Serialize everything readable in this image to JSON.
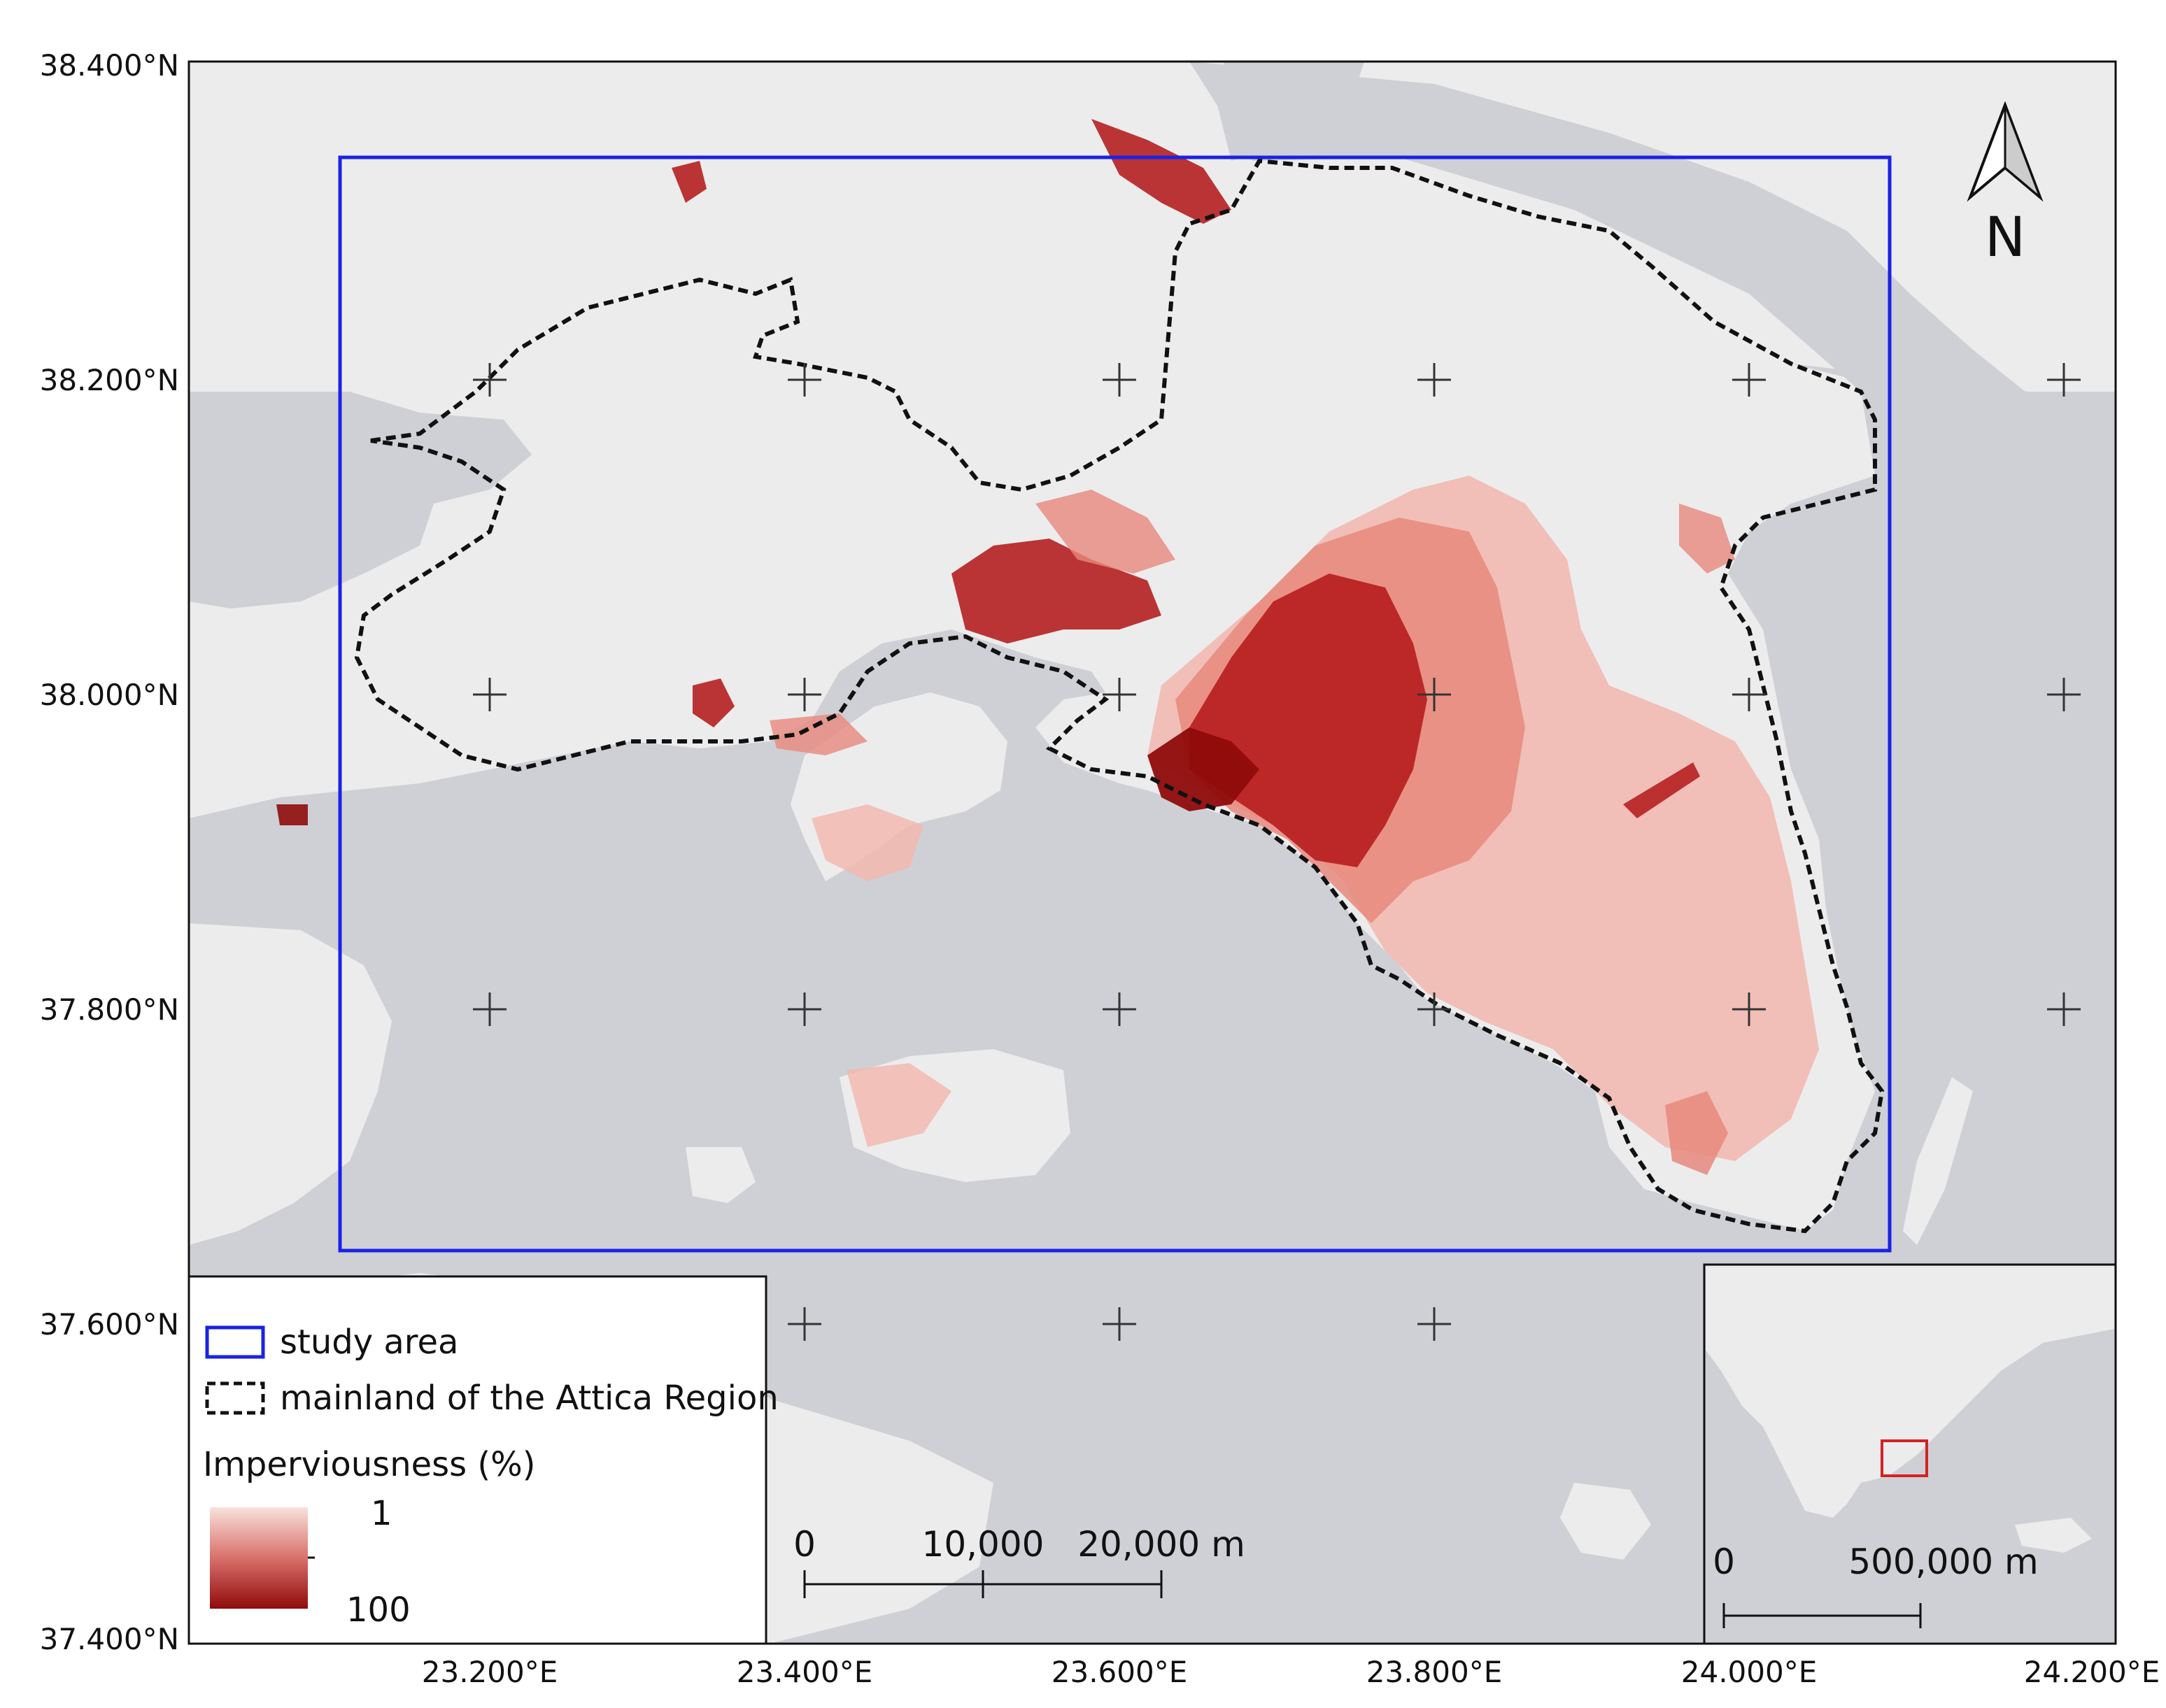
{
  "axes": {
    "lat_labels": [
      "38.400°N",
      "38.200°N",
      "38.000°N",
      "37.800°N",
      "37.600°N",
      "37.400°N"
    ],
    "lon_labels": [
      "23.200°E",
      "23.400°E",
      "23.600°E",
      "23.800°E",
      "24.000°E",
      "24.200°E"
    ]
  },
  "legend": {
    "study_area": "study area",
    "attica_boundary": "mainland of the Attica Region",
    "imperviousness_title": "Imperviousness (%)",
    "ramp_min": "1",
    "ramp_max": "100"
  },
  "scalebar_main": {
    "zero": "0",
    "mid": "10,000",
    "max": "20,000 m"
  },
  "scalebar_inset": {
    "zero": "0",
    "max": "500,000 m"
  },
  "north_arrow": {
    "label": "N"
  },
  "colors": {
    "sea": "#cfd0d5",
    "land": "#ececed",
    "study_area": "#1a22e6",
    "boundary": "#111111",
    "impervious_low": "#f6d6d0",
    "impervious_high": "#8f0b0b",
    "inset_box": "#d42222"
  }
}
